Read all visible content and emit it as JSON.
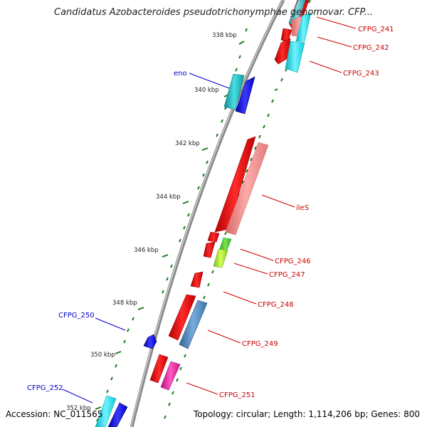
{
  "title": "Candidatus Azobacteroides pseudotrichonymphae genomovar. CFP...",
  "footer": {
    "accession": "Accession: NC_011565",
    "summary": "Topology: circular; Length: 1,114,206 bp; Genes: 800"
  },
  "colors": {
    "backbone": "#8a8a8a",
    "tick": "#1f7a1f",
    "label_plus": "#cc0000",
    "label_minus": "#0000cc",
    "red": "#ee1111",
    "pink": "#f08e8e",
    "cyan": "#19d8e6",
    "blue": "#1010ee",
    "teal": "#17b6bd",
    "steelblue": "#4b86bf",
    "green": "#52c928",
    "lime": "#a6e82a",
    "magenta": "#e6249a"
  },
  "kbp_labels": [
    "338 kbp",
    "340 kbp",
    "342 kbp",
    "344 kbp",
    "346 kbp",
    "348 kbp",
    "350 kbp",
    "352 kbp"
  ],
  "gene_labels": {
    "cfpg_241": "CFPG_241",
    "cfpg_242": "CFPG_242",
    "cfpg_243": "CFPG_243",
    "eno": "eno",
    "iles": "ileS",
    "cfpg_246": "CFPG_246",
    "cfpg_247": "CFPG_247",
    "cfpg_248": "CFPG_248",
    "cfpg_249": "CFPG_249",
    "cfpg_250": "CFPG_250",
    "cfpg_251": "CFPG_251",
    "cfpg_252": "CFPG_252"
  }
}
